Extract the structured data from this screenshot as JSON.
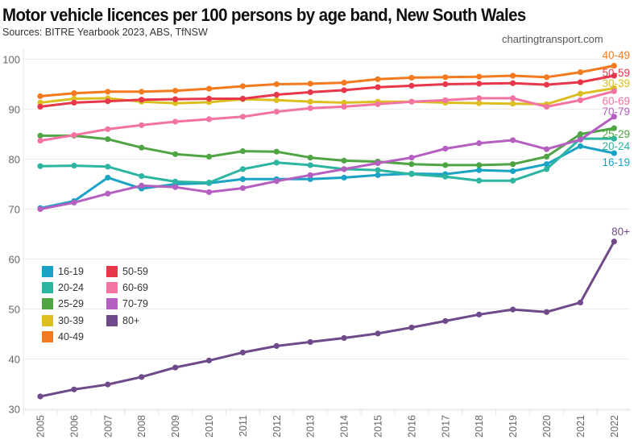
{
  "header": {
    "title": "Motor vehicle licences per 100 persons by age band, New South Wales",
    "subtitle": "Sources: BITRE Yearbook 2023, ABS, TfNSW",
    "credit": "chartingtransport.com"
  },
  "chart_data": {
    "type": "line",
    "title": "Motor vehicle licences per 100 persons by age band, New South Wales",
    "subtitle": "Sources: BITRE Yearbook 2023, ABS, TfNSW",
    "xlabel": "",
    "ylabel": "",
    "ylim": [
      30,
      100
    ],
    "yticks": [
      "30",
      "40",
      "50",
      "60",
      "70",
      "80",
      "90",
      "100"
    ],
    "grid": true,
    "legend_position": "bottom-left",
    "x": [
      "2005",
      "2006",
      "2007",
      "2008",
      "2009",
      "2010",
      "2011",
      "2012",
      "2013",
      "2014",
      "2015",
      "2016",
      "2017",
      "2018",
      "2019",
      "2020",
      "2021",
      "2022"
    ],
    "series": [
      {
        "name": "16-19",
        "color": "#1ba3c6",
        "values": [
          70.2,
          71.6,
          76.3,
          74.1,
          75.0,
          75.2,
          76.0,
          76.0,
          76.0,
          76.3,
          76.8,
          77.1,
          77.0,
          77.8,
          77.6,
          79.0,
          82.6,
          81.2
        ]
      },
      {
        "name": "20-24",
        "color": "#2cb5a0",
        "values": [
          78.6,
          78.7,
          78.5,
          76.6,
          75.5,
          75.3,
          78.0,
          79.3,
          78.8,
          78.0,
          77.8,
          77.0,
          76.5,
          75.7,
          75.7,
          78.0,
          84.1,
          84.1
        ]
      },
      {
        "name": "25-29",
        "color": "#4fa543",
        "values": [
          84.7,
          84.7,
          84.0,
          82.3,
          81.0,
          80.5,
          81.6,
          81.5,
          80.3,
          79.7,
          79.5,
          79.0,
          78.8,
          78.8,
          79.0,
          80.5,
          85.0,
          86.2
        ]
      },
      {
        "name": "30-39",
        "color": "#dcbe20",
        "values": [
          91.3,
          92.1,
          92.2,
          91.5,
          91.2,
          91.4,
          92.0,
          91.8,
          91.5,
          91.3,
          91.5,
          91.5,
          91.3,
          91.2,
          91.1,
          91.0,
          93.1,
          94.2
        ]
      },
      {
        "name": "40-49",
        "color": "#f47a1f",
        "values": [
          92.6,
          93.2,
          93.5,
          93.5,
          93.7,
          94.1,
          94.6,
          95.0,
          95.1,
          95.3,
          96.0,
          96.3,
          96.4,
          96.5,
          96.7,
          96.4,
          97.4,
          98.7
        ]
      },
      {
        "name": "50-59",
        "color": "#e8364a",
        "values": [
          90.5,
          91.3,
          91.6,
          91.9,
          92.0,
          92.1,
          92.1,
          92.9,
          93.4,
          93.8,
          94.4,
          94.7,
          95.0,
          95.1,
          95.2,
          94.9,
          95.4,
          96.7
        ]
      },
      {
        "name": "60-69",
        "color": "#f374a2",
        "values": [
          83.7,
          84.8,
          86.0,
          86.8,
          87.5,
          88.0,
          88.5,
          89.5,
          90.2,
          90.5,
          91.0,
          91.5,
          91.8,
          92.2,
          92.2,
          90.5,
          91.8,
          93.6
        ]
      },
      {
        "name": "70-79",
        "color": "#b55fc1",
        "values": [
          70.0,
          71.3,
          73.1,
          74.7,
          74.4,
          73.4,
          74.2,
          75.6,
          76.8,
          78.0,
          79.2,
          80.3,
          82.1,
          83.2,
          83.8,
          82.0,
          83.9,
          88.5
        ]
      },
      {
        "name": "80+",
        "color": "#6e4a8a",
        "values": [
          32.5,
          33.9,
          34.9,
          36.4,
          38.3,
          39.7,
          41.3,
          42.6,
          43.4,
          44.2,
          45.1,
          46.3,
          47.6,
          48.9,
          49.9,
          49.4,
          51.3,
          63.5
        ]
      }
    ],
    "end_labels": [
      "40-49",
      "50-59",
      "30-39",
      "60-69",
      "70-79",
      "25-29",
      "20-24",
      "16-19",
      "80+"
    ]
  },
  "legend": {
    "items": [
      {
        "label": "16-19",
        "color": "#1ba3c6"
      },
      {
        "label": "20-24",
        "color": "#2cb5a0"
      },
      {
        "label": "25-29",
        "color": "#4fa543"
      },
      {
        "label": "30-39",
        "color": "#dcbe20"
      },
      {
        "label": "40-49",
        "color": "#f47a1f"
      },
      {
        "label": "50-59",
        "color": "#e8364a"
      },
      {
        "label": "60-69",
        "color": "#f374a2"
      },
      {
        "label": "70-79",
        "color": "#b55fc1"
      },
      {
        "label": "80+",
        "color": "#6e4a8a"
      }
    ]
  }
}
